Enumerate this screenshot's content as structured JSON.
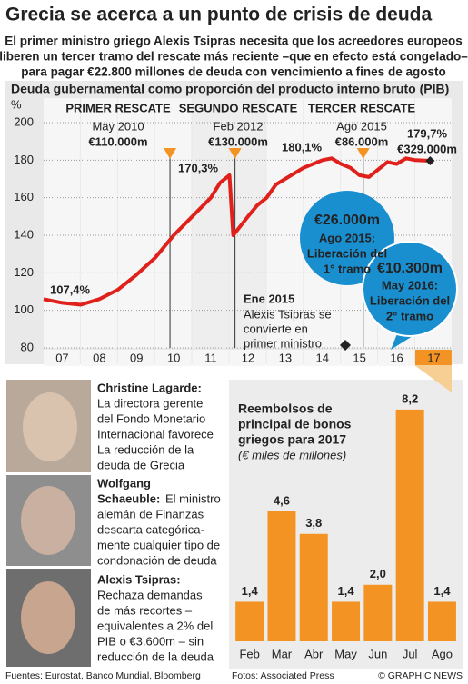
{
  "header": {
    "title": "Grecia se acerca a un punto de crisis de deuda",
    "subtitle": [
      "El primer ministro griego Alexis Tsipras necesita que los acreedores europeos",
      "liberen un tercer tramo del rescate más reciente –que en efecto está congelado–",
      "para pagar €22.800 millones de deuda con vencimiento a fines de agosto"
    ]
  },
  "chart_data": [
    {
      "type": "line",
      "title": "Deuda gubernamental como proporción del producto interno bruto (PIB)",
      "y_label": "%",
      "categories": [
        "07",
        "08",
        "09",
        "10",
        "11",
        "12",
        "13",
        "14",
        "15",
        "16",
        "17"
      ],
      "x": [
        2007.0,
        2007.5,
        2008.0,
        2008.5,
        2009.0,
        2009.5,
        2010.0,
        2010.5,
        2011.0,
        2011.5,
        2011.75,
        2012.0,
        2012.1,
        2012.5,
        2012.75,
        2013.0,
        2013.25,
        2013.5,
        2014.0,
        2014.5,
        2014.75,
        2015.0,
        2015.25,
        2015.5,
        2015.75,
        2016.0,
        2016.25,
        2016.5,
        2016.75,
        2017.0,
        2017.4
      ],
      "values": [
        106,
        104,
        103,
        106,
        111,
        119,
        128,
        140,
        150,
        160,
        168,
        172,
        140,
        150,
        156,
        160,
        167,
        170,
        176,
        180,
        181,
        178,
        176,
        172,
        171,
        175,
        179,
        178,
        181,
        180,
        179.7
      ],
      "xlim": [
        2007,
        2018
      ],
      "ylim": [
        80,
        200
      ],
      "yticks": [
        80,
        100,
        120,
        140,
        160,
        180,
        200
      ],
      "color": "#e0201b",
      "grid": true,
      "annotations": [
        {
          "lines": [
            "PRIMER RESCATE",
            "May 2010",
            "€110.000m"
          ]
        },
        {
          "lines": [
            "SEGUNDO RESCATE",
            "Feb 2012",
            "€130.000m"
          ]
        },
        {
          "lines": [
            "TERCER RESCATE",
            "Ago 2015",
            "€86.000m"
          ]
        },
        {
          "lines": [
            "170,3%"
          ]
        },
        {
          "lines": [
            "180,1%"
          ]
        },
        {
          "lines": [
            "107,4%"
          ]
        },
        {
          "lines": [
            "179,7%",
            "€329.000m"
          ]
        },
        {
          "lines": [
            "€26.000m",
            "Ago 2015:",
            "Liberación del",
            "1° tramo"
          ]
        },
        {
          "lines": [
            "€10.300m",
            "May 2016:",
            "Liberación del",
            "2° tramo"
          ]
        },
        {
          "lines": [
            "Ene 2015",
            "Alexis Tsipras se",
            "convierte en",
            "primer ministro"
          ]
        }
      ]
    },
    {
      "type": "bar",
      "title": [
        "Reembolsos de",
        "principal de bonos",
        "griegos para 2017"
      ],
      "subtitle": "(€ miles de millones)",
      "categories": [
        "Feb",
        "Mar",
        "Abr",
        "May",
        "Jun",
        "Jul",
        "Ago"
      ],
      "values": [
        1.4,
        4.6,
        3.8,
        1.4,
        2.0,
        8.2,
        1.4
      ],
      "value_labels": [
        "1,4",
        "4,6",
        "3,8",
        "1,4",
        "2,0",
        "8,2",
        "1,4"
      ],
      "ylim": [
        0,
        9
      ],
      "color": "#f39323"
    }
  ],
  "profiles": [
    {
      "name": "Christine Lagarde:",
      "text": [
        "La directora gerente",
        "del Fondo Monetario",
        "Internacional favorece",
        "La reducción de la",
        "deuda de Grecia"
      ]
    },
    {
      "name": [
        "Wolfgang",
        "Schaeuble:"
      ],
      "text": [
        "El ministro",
        "alemán de Finanzas",
        "descarta categórica-",
        "mente cualquier tipo de",
        "condonación de deuda"
      ]
    },
    {
      "name": "Alexis Tsipras:",
      "text": [
        "Rechaza demandas",
        "de más recortes –",
        "equivalentes a 2% del",
        "PIB o €3.600m – sin",
        "reducción de la deuda"
      ]
    }
  ],
  "footer": {
    "sources": "Fuentes: Eurostat, Banco Mundial, Bloomberg",
    "photos": "Fotos: Associated Press",
    "credit": "© GRAPHIC NEWS"
  }
}
